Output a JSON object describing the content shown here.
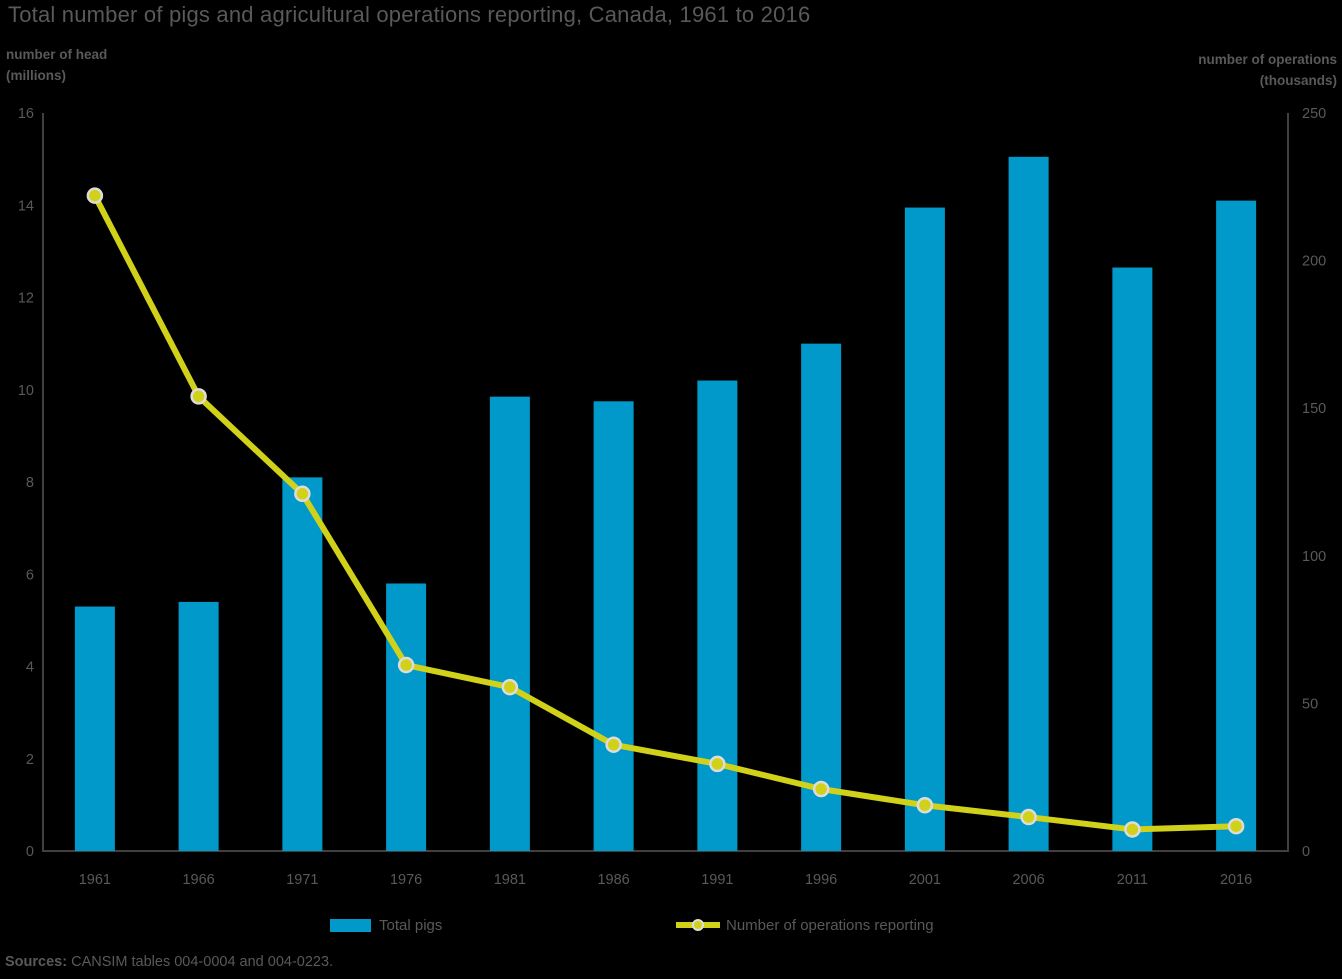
{
  "title": "Total number of pigs and agricultural operations reporting, Canada, 1961 to 2016",
  "left_axis": {
    "unit_line1": "number of head",
    "unit_line2": "(millions)",
    "ticks": [
      0,
      2,
      4,
      6,
      8,
      10,
      12,
      14,
      16
    ]
  },
  "right_axis": {
    "unit_line1": "number of operations",
    "unit_line2": "(thousands)",
    "ticks": [
      0,
      50,
      100,
      150,
      200,
      250
    ]
  },
  "legend": [
    {
      "label": "Total pigs",
      "swatch": "blue-bar"
    },
    {
      "label": "Number of operations reporting",
      "swatch": "yellow-line-with-dot"
    }
  ],
  "footer": {
    "sources_label": "Sources:",
    "sources_text": " CANSIM tables 004-0004 and 004-0223."
  },
  "colors": {
    "background": "#000000",
    "text": "#595959",
    "axis": "#404040",
    "bar": "#0099C9",
    "line": "#D1D119",
    "marker_ring": "#DCDCDC"
  },
  "chart_data": {
    "type": "bar+line",
    "title": "Total number of pigs and agricultural operations reporting, Canada, 1961 to 2016",
    "categories": [
      "1961",
      "1966",
      "1971",
      "1976",
      "1981",
      "1986",
      "1991",
      "1996",
      "2001",
      "2006",
      "2011",
      "2016"
    ],
    "series": [
      {
        "name": "Total pigs",
        "type": "bar",
        "axis": "left",
        "unit": "millions of head",
        "values": [
          5.3,
          5.4,
          8.1,
          5.8,
          9.85,
          9.75,
          10.2,
          11.0,
          13.95,
          15.05,
          12.65,
          14.1
        ]
      },
      {
        "name": "Number of operations reporting",
        "type": "line",
        "axis": "right",
        "unit": "thousands of operations",
        "values": [
          222,
          154,
          121,
          63,
          55.5,
          36,
          29.5,
          21,
          15.5,
          11.5,
          7.3,
          8.4
        ]
      }
    ],
    "left_ylabel": "number of head (millions)",
    "right_ylabel": "number of operations (thousands)",
    "left_ylim": [
      0,
      16
    ],
    "right_ylim": [
      0,
      250
    ],
    "grid": false,
    "legend_position": "bottom"
  }
}
